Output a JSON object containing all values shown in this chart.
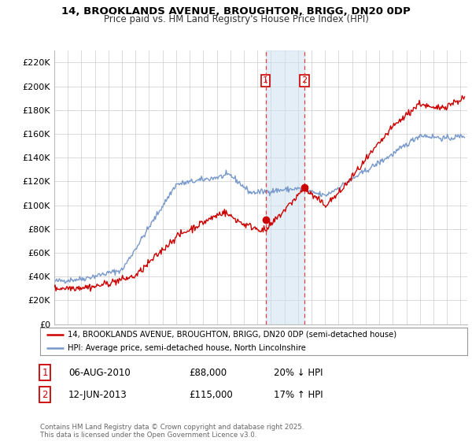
{
  "title1": "14, BROOKLANDS AVENUE, BROUGHTON, BRIGG, DN20 0DP",
  "title2": "Price paid vs. HM Land Registry's House Price Index (HPI)",
  "ylabel_ticks": [
    "£0",
    "£20K",
    "£40K",
    "£60K",
    "£80K",
    "£100K",
    "£120K",
    "£140K",
    "£160K",
    "£180K",
    "£200K",
    "£220K"
  ],
  "ytick_vals": [
    0,
    20000,
    40000,
    60000,
    80000,
    100000,
    120000,
    140000,
    160000,
    180000,
    200000,
    220000
  ],
  "ylim": [
    0,
    230000
  ],
  "xlim_start": 1995.0,
  "xlim_end": 2025.5,
  "line1_color": "#cc0000",
  "line2_color": "#7799cc",
  "sale1_x": 2010.6,
  "sale1_y": 88000,
  "sale2_x": 2013.45,
  "sale2_y": 115000,
  "vline1_x": 2010.6,
  "vline2_x": 2013.45,
  "legend_line1": "14, BROOKLANDS AVENUE, BROUGHTON, BRIGG, DN20 0DP (semi-detached house)",
  "legend_line2": "HPI: Average price, semi-detached house, North Lincolnshire",
  "table_row1": [
    "1",
    "06-AUG-2010",
    "£88,000",
    "20% ↓ HPI"
  ],
  "table_row2": [
    "2",
    "12-JUN-2013",
    "£115,000",
    "17% ↑ HPI"
  ],
  "footer": "Contains HM Land Registry data © Crown copyright and database right 2025.\nThis data is licensed under the Open Government Licence v3.0.",
  "background_color": "#ffffff",
  "grid_color": "#cccccc"
}
